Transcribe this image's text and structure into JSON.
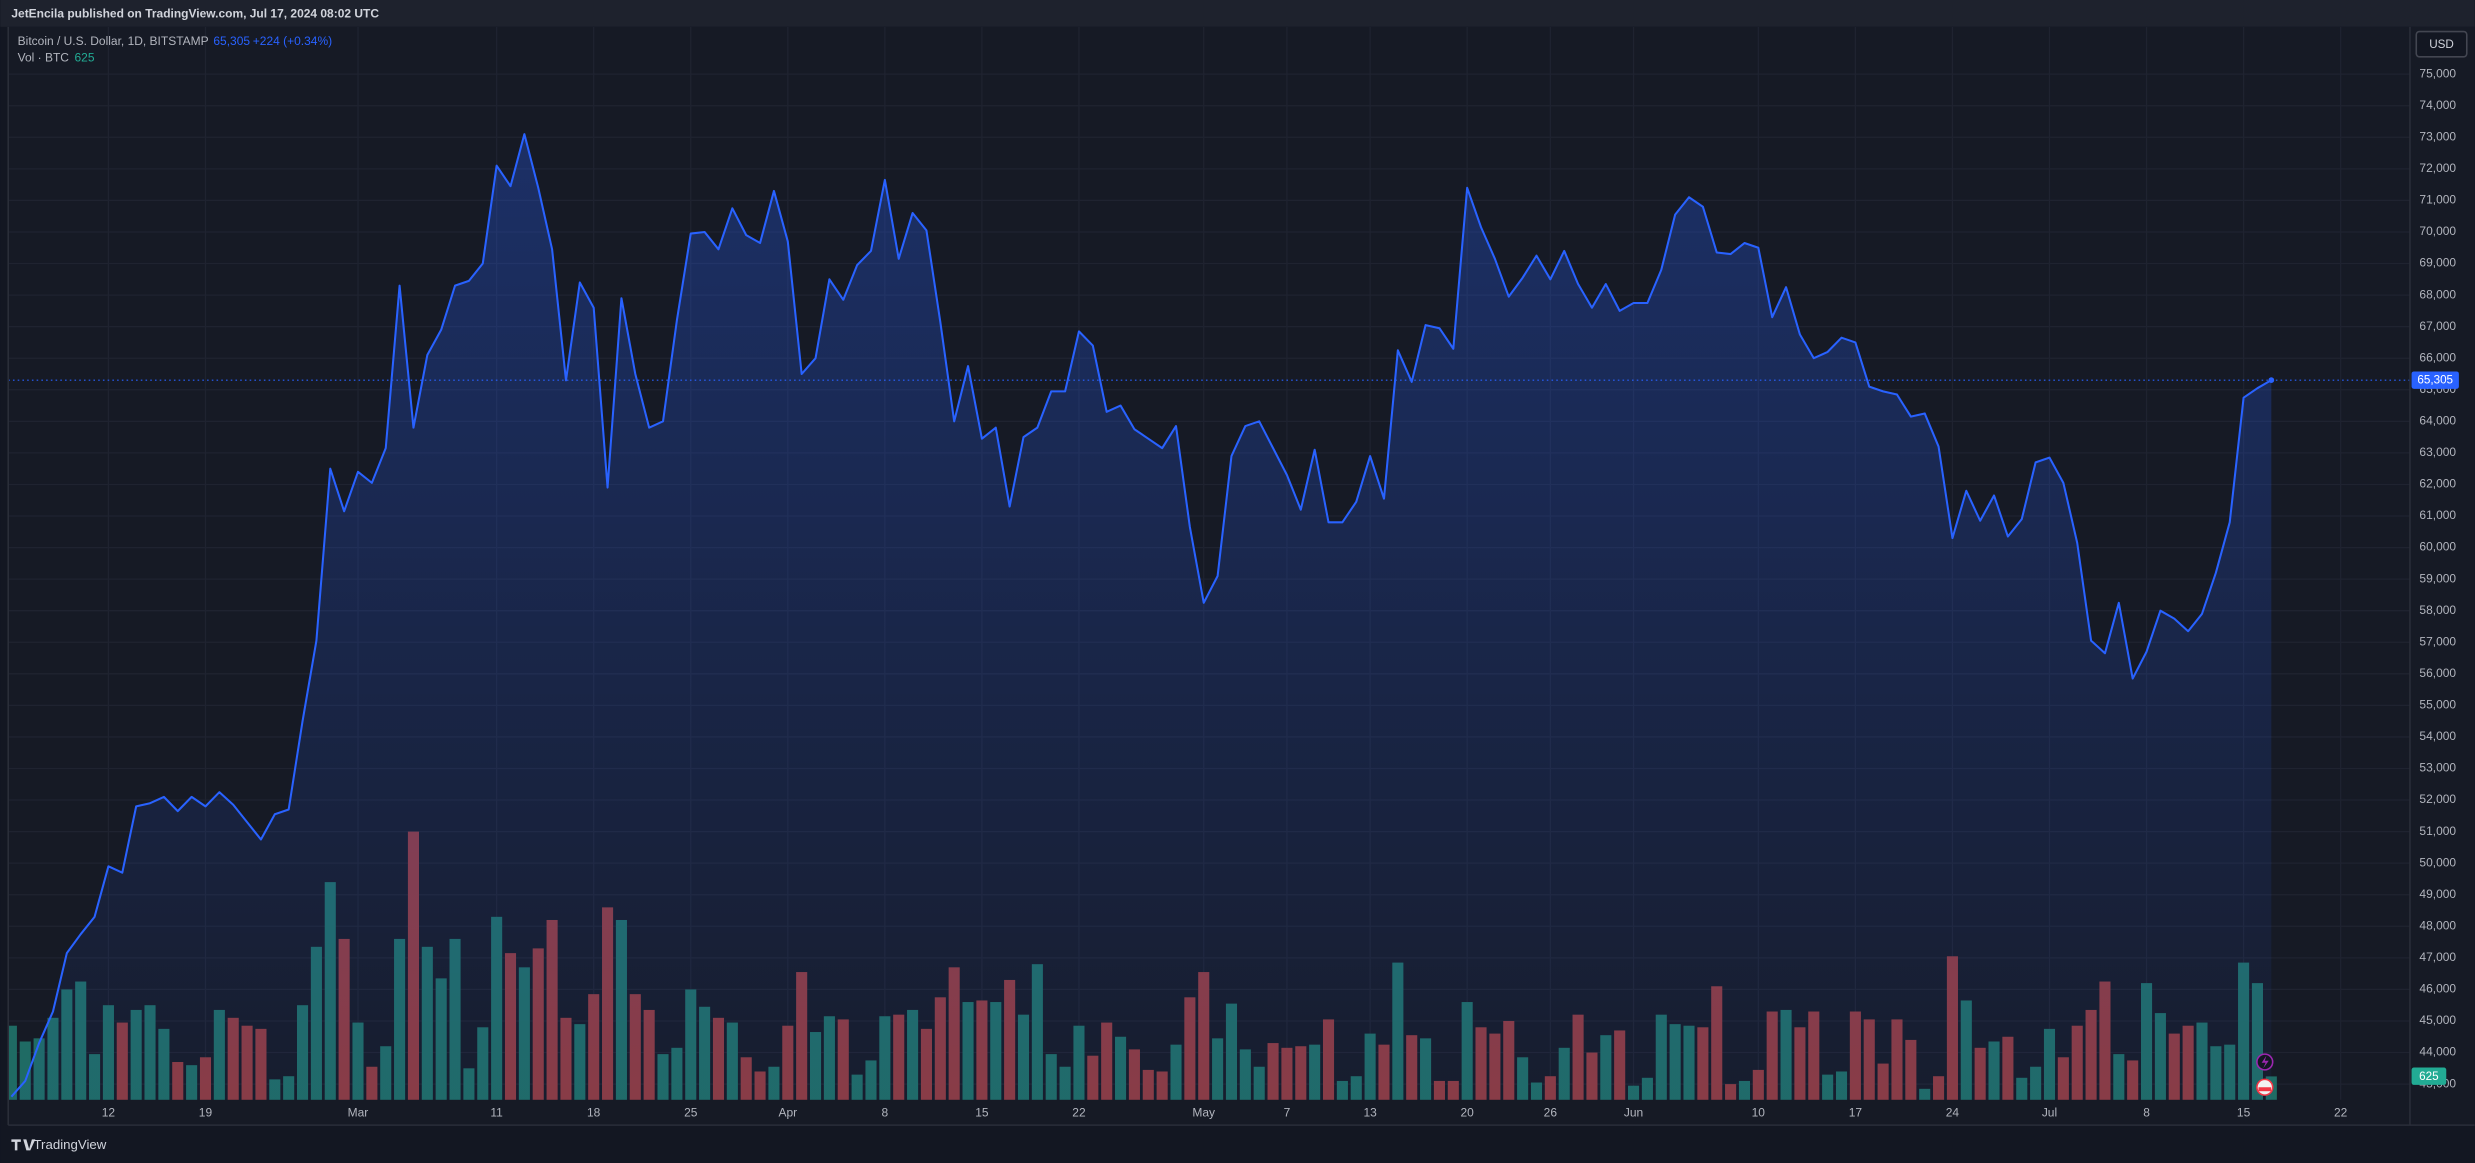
{
  "attribution": "JetEncila published on TradingView.com, Jul 17, 2024 08:02 UTC",
  "brand": "TradingView",
  "currency": "USD",
  "chart_data": {
    "type": "area",
    "grid": true,
    "last_close_label": "65,305",
    "change_label": "+224 (+0.34%)",
    "x": [
      "2024-02-05",
      "2024-02-06",
      "2024-02-07",
      "2024-02-08",
      "2024-02-09",
      "2024-02-10",
      "2024-02-11",
      "2024-02-12",
      "2024-02-13",
      "2024-02-14",
      "2024-02-15",
      "2024-02-16",
      "2024-02-17",
      "2024-02-18",
      "2024-02-19",
      "2024-02-20",
      "2024-02-21",
      "2024-02-22",
      "2024-02-23",
      "2024-02-24",
      "2024-02-25",
      "2024-02-26",
      "2024-02-27",
      "2024-02-28",
      "2024-02-29",
      "2024-03-01",
      "2024-03-02",
      "2024-03-03",
      "2024-03-04",
      "2024-03-05",
      "2024-03-06",
      "2024-03-07",
      "2024-03-08",
      "2024-03-09",
      "2024-03-10",
      "2024-03-11",
      "2024-03-12",
      "2024-03-13",
      "2024-03-14",
      "2024-03-15",
      "2024-03-16",
      "2024-03-17",
      "2024-03-18",
      "2024-03-19",
      "2024-03-20",
      "2024-03-21",
      "2024-03-22",
      "2024-03-23",
      "2024-03-24",
      "2024-03-25",
      "2024-03-26",
      "2024-03-27",
      "2024-03-28",
      "2024-03-29",
      "2024-03-30",
      "2024-03-31",
      "2024-04-01",
      "2024-04-02",
      "2024-04-03",
      "2024-04-04",
      "2024-04-05",
      "2024-04-06",
      "2024-04-07",
      "2024-04-08",
      "2024-04-09",
      "2024-04-10",
      "2024-04-11",
      "2024-04-12",
      "2024-04-13",
      "2024-04-14",
      "2024-04-15",
      "2024-04-16",
      "2024-04-17",
      "2024-04-18",
      "2024-04-19",
      "2024-04-20",
      "2024-04-21",
      "2024-04-22",
      "2024-04-23",
      "2024-04-24",
      "2024-04-25",
      "2024-04-26",
      "2024-04-27",
      "2024-04-28",
      "2024-04-29",
      "2024-04-30",
      "2024-05-01",
      "2024-05-02",
      "2024-05-03",
      "2024-05-04",
      "2024-05-05",
      "2024-05-06",
      "2024-05-07",
      "2024-05-08",
      "2024-05-09",
      "2024-05-10",
      "2024-05-11",
      "2024-05-12",
      "2024-05-13",
      "2024-05-14",
      "2024-05-15",
      "2024-05-16",
      "2024-05-17",
      "2024-05-18",
      "2024-05-19",
      "2024-05-20",
      "2024-05-21",
      "2024-05-22",
      "2024-05-23",
      "2024-05-24",
      "2024-05-25",
      "2024-05-26",
      "2024-05-27",
      "2024-05-28",
      "2024-05-29",
      "2024-05-30",
      "2024-05-31",
      "2024-06-01",
      "2024-06-02",
      "2024-06-03",
      "2024-06-04",
      "2024-06-05",
      "2024-06-06",
      "2024-06-07",
      "2024-06-08",
      "2024-06-09",
      "2024-06-10",
      "2024-06-11",
      "2024-06-12",
      "2024-06-13",
      "2024-06-14",
      "2024-06-15",
      "2024-06-16",
      "2024-06-17",
      "2024-06-18",
      "2024-06-19",
      "2024-06-20",
      "2024-06-21",
      "2024-06-22",
      "2024-06-23",
      "2024-06-24",
      "2024-06-25",
      "2024-06-26",
      "2024-06-27",
      "2024-06-28",
      "2024-06-29",
      "2024-06-30",
      "2024-07-01",
      "2024-07-02",
      "2024-07-03",
      "2024-07-04",
      "2024-07-05",
      "2024-07-06",
      "2024-07-07",
      "2024-07-08",
      "2024-07-09",
      "2024-07-10",
      "2024-07-11",
      "2024-07-12",
      "2024-07-13",
      "2024-07-14",
      "2024-07-15",
      "2024-07-16",
      "2024-07-17"
    ],
    "xlim": [
      "2024-02-05",
      "2024-07-27"
    ],
    "xticks": [
      {
        "value": "2024-02-12",
        "label": "12"
      },
      {
        "value": "2024-02-19",
        "label": "19"
      },
      {
        "value": "2024-03-01",
        "label": "Mar"
      },
      {
        "value": "2024-03-11",
        "label": "11"
      },
      {
        "value": "2024-03-18",
        "label": "18"
      },
      {
        "value": "2024-03-25",
        "label": "25"
      },
      {
        "value": "2024-04-01",
        "label": "Apr"
      },
      {
        "value": "2024-04-08",
        "label": "8"
      },
      {
        "value": "2024-04-15",
        "label": "15"
      },
      {
        "value": "2024-04-22",
        "label": "22"
      },
      {
        "value": "2024-05-01",
        "label": "May"
      },
      {
        "value": "2024-05-07",
        "label": "7"
      },
      {
        "value": "2024-05-13",
        "label": "13"
      },
      {
        "value": "2024-05-20",
        "label": "20"
      },
      {
        "value": "2024-05-26",
        "label": "26"
      },
      {
        "value": "2024-06-01",
        "label": "Jun"
      },
      {
        "value": "2024-06-10",
        "label": "10"
      },
      {
        "value": "2024-06-17",
        "label": "17"
      },
      {
        "value": "2024-06-24",
        "label": "24"
      },
      {
        "value": "2024-07-01",
        "label": "Jul"
      },
      {
        "value": "2024-07-08",
        "label": "8"
      },
      {
        "value": "2024-07-15",
        "label": "15"
      },
      {
        "value": "2024-07-22",
        "label": "22"
      }
    ],
    "ylim": [
      42500,
      76500
    ],
    "yticks": [
      {
        "value": 43000,
        "label": "43,000"
      },
      {
        "value": 44000,
        "label": "44,000"
      },
      {
        "value": 45000,
        "label": "45,000"
      },
      {
        "value": 46000,
        "label": "46,000"
      },
      {
        "value": 47000,
        "label": "47,000"
      },
      {
        "value": 48000,
        "label": "48,000"
      },
      {
        "value": 49000,
        "label": "49,000"
      },
      {
        "value": 50000,
        "label": "50,000"
      },
      {
        "value": 51000,
        "label": "51,000"
      },
      {
        "value": 52000,
        "label": "52,000"
      },
      {
        "value": 53000,
        "label": "53,000"
      },
      {
        "value": 54000,
        "label": "54,000"
      },
      {
        "value": 55000,
        "label": "55,000"
      },
      {
        "value": 56000,
        "label": "56,000"
      },
      {
        "value": 57000,
        "label": "57,000"
      },
      {
        "value": 58000,
        "label": "58,000"
      },
      {
        "value": 59000,
        "label": "59,000"
      },
      {
        "value": 60000,
        "label": "60,000"
      },
      {
        "value": 61000,
        "label": "61,000"
      },
      {
        "value": 62000,
        "label": "62,000"
      },
      {
        "value": 63000,
        "label": "63,000"
      },
      {
        "value": 64000,
        "label": "64,000"
      },
      {
        "value": 65000,
        "label": "65,000"
      },
      {
        "value": 66000,
        "label": "66,000"
      },
      {
        "value": 67000,
        "label": "67,000"
      },
      {
        "value": 68000,
        "label": "68,000"
      },
      {
        "value": 69000,
        "label": "69,000"
      },
      {
        "value": 70000,
        "label": "70,000"
      },
      {
        "value": 71000,
        "label": "71,000"
      },
      {
        "value": 72000,
        "label": "72,000"
      },
      {
        "value": 73000,
        "label": "73,000"
      },
      {
        "value": 74000,
        "label": "74,000"
      },
      {
        "value": 75000,
        "label": "75,000"
      }
    ],
    "y2lim": [
      0,
      28560
    ],
    "series": [
      {
        "name": "Bitcoin / U.S. Dollar, 1D, BITSTAMP",
        "type": "area",
        "color": "#2962ff",
        "values": [
          42600,
          43100,
          44300,
          45300,
          47150,
          47750,
          48300,
          49900,
          49700,
          51800,
          51900,
          52100,
          51650,
          52100,
          51800,
          52250,
          51850,
          51300,
          50750,
          51550,
          51700,
          54500,
          57050,
          62500,
          61150,
          62400,
          62050,
          63150,
          68300,
          63800,
          66100,
          66900,
          68300,
          68450,
          69000,
          72100,
          71450,
          73100,
          71400,
          69450,
          65300,
          68400,
          67600,
          61900,
          67900,
          65500,
          63800,
          64000,
          67200,
          69950,
          70000,
          69450,
          70750,
          69900,
          69650,
          71300,
          69700,
          65500,
          66000,
          68500,
          67850,
          68950,
          69400,
          71650,
          69150,
          70600,
          70050,
          67150,
          64000,
          65750,
          63450,
          63800,
          61300,
          63500,
          63800,
          64950,
          64950,
          66850,
          66400,
          64300,
          64500,
          63750,
          63450,
          63150,
          63850,
          60650,
          58250,
          59100,
          62900,
          63850,
          64000,
          63150,
          62300,
          61200,
          63100,
          60800,
          60800,
          61450,
          62900,
          61550,
          66250,
          65250,
          67050,
          66950,
          66300,
          71400,
          70150,
          69150,
          67950,
          68550,
          69250,
          68500,
          69400,
          68350,
          67600,
          68350,
          67500,
          67750,
          67750,
          68800,
          70550,
          71100,
          70800,
          69350,
          69300,
          69650,
          69500,
          67300,
          68250,
          66750,
          66000,
          66200,
          66650,
          66500,
          65100,
          64950,
          64850,
          64150,
          64250,
          63200,
          60300,
          61800,
          60850,
          61650,
          60350,
          60900,
          62700,
          62850,
          62050,
          60150,
          57050,
          56650,
          58250,
          55850,
          56700,
          58000,
          57750,
          57350,
          57900,
          59200,
          60800,
          64750,
          65050,
          65305
        ]
      },
      {
        "name": "Vol · BTC",
        "type": "bar",
        "axis": "y2",
        "up_color": "#1f6b64",
        "down_color": "#8c3a3f",
        "values": [
          1974,
          1554,
          1638,
          2184,
          2940,
          3150,
          1218,
          2520,
          2058,
          2394,
          2520,
          1890,
          1008,
          924,
          1134,
          2394,
          2184,
          1974,
          1890,
          546,
          630,
          2520,
          4074,
          5796,
          4284,
          2058,
          882,
          1428,
          4284,
          7140,
          4074,
          3234,
          4284,
          840,
          1932,
          4872,
          3906,
          3528,
          4032,
          4788,
          2184,
          2016,
          2814,
          5124,
          4788,
          2814,
          2394,
          1218,
          1386,
          2940,
          2478,
          2184,
          2058,
          1134,
          756,
          882,
          1974,
          3402,
          1806,
          2226,
          2142,
          672,
          1050,
          2226,
          2268,
          2394,
          1890,
          2730,
          3528,
          2604,
          2646,
          2604,
          3192,
          2268,
          3612,
          1218,
          882,
          1974,
          1176,
          2058,
          1680,
          1344,
          798,
          756,
          1470,
          2730,
          3402,
          1638,
          2562,
          1344,
          882,
          1512,
          1386,
          1428,
          1470,
          2142,
          504,
          630,
          1764,
          1470,
          3654,
          1722,
          1638,
          504,
          504,
          2604,
          1932,
          1764,
          2100,
          1134,
          462,
          630,
          1386,
          2268,
          1260,
          1722,
          1848,
          378,
          588,
          2268,
          2016,
          1974,
          1932,
          3024,
          420,
          504,
          798,
          2352,
          2394,
          1932,
          2352,
          672,
          756,
          2352,
          2142,
          966,
          2142,
          1596,
          294,
          630,
          3822,
          2646,
          1386,
          1554,
          1680,
          588,
          882,
          1890,
          1134,
          1974,
          2394,
          3150,
          1218,
          1050,
          3108,
          2310,
          1764,
          1974,
          2058,
          1428,
          1470,
          3654,
          3108,
          625
        ]
      }
    ]
  }
}
